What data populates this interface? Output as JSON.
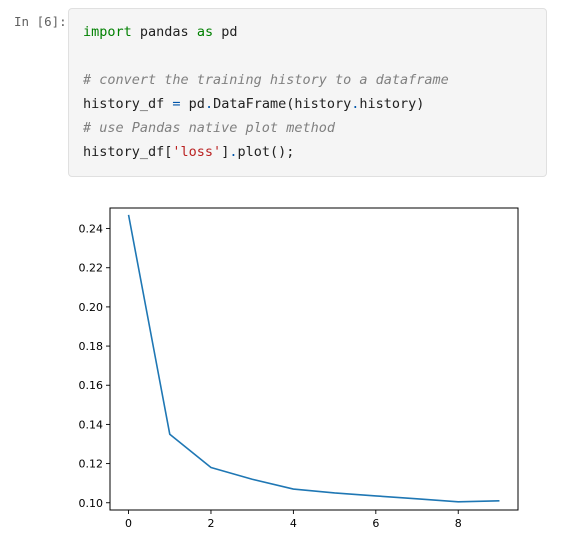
{
  "cell": {
    "prompt": "In [6]:",
    "code_lines": [
      [
        {
          "t": "import",
          "c": "kw"
        },
        {
          "t": " pandas ",
          "c": ""
        },
        {
          "t": "as",
          "c": "kw"
        },
        {
          "t": " pd",
          "c": ""
        }
      ],
      [],
      [
        {
          "t": "# convert the training history to a dataframe",
          "c": "cm"
        }
      ],
      [
        {
          "t": "history_df ",
          "c": ""
        },
        {
          "t": "=",
          "c": "op"
        },
        {
          "t": " pd",
          "c": ""
        },
        {
          "t": ".",
          "c": "op"
        },
        {
          "t": "DataFrame(history",
          "c": ""
        },
        {
          "t": ".",
          "c": "op"
        },
        {
          "t": "history)",
          "c": ""
        }
      ],
      [
        {
          "t": "# use Pandas native plot method",
          "c": "cm"
        }
      ],
      [
        {
          "t": "history_df[",
          "c": ""
        },
        {
          "t": "'loss'",
          "c": "str"
        },
        {
          "t": "]",
          "c": ""
        },
        {
          "t": ".",
          "c": "op"
        },
        {
          "t": "plot();",
          "c": ""
        }
      ]
    ]
  },
  "chart_data": {
    "type": "line",
    "title": "",
    "xlabel": "",
    "ylabel": "",
    "xlim": [
      -0.45,
      9.45
    ],
    "ylim": [
      0.0963,
      0.2505
    ],
    "xticks": [
      0,
      2,
      4,
      6,
      8
    ],
    "xtick_labels": [
      "0",
      "2",
      "4",
      "6",
      "8"
    ],
    "yticks": [
      0.1,
      0.12,
      0.14,
      0.16,
      0.18,
      0.2,
      0.22,
      0.24
    ],
    "ytick_labels": [
      "0.10",
      "0.12",
      "0.14",
      "0.16",
      "0.18",
      "0.20",
      "0.22",
      "0.24"
    ],
    "grid": false,
    "series": [
      {
        "color": "#1f77b4",
        "x": [
          0,
          1,
          2,
          3,
          4,
          5,
          6,
          7,
          8,
          9
        ],
        "y": [
          0.247,
          0.135,
          0.118,
          0.112,
          0.107,
          0.105,
          0.1035,
          0.102,
          0.1005,
          0.101
        ]
      }
    ]
  }
}
